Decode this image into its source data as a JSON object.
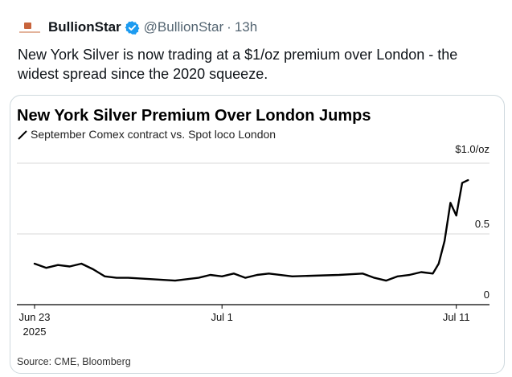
{
  "tweet": {
    "display_name": "BullionStar",
    "handle": "@BullionStar",
    "separator": "·",
    "timestamp": "13h",
    "text": "New York Silver is now trading at a $1/oz premium over London - the widest spread since the 2020 squeeze.",
    "verified_color": "#1d9bf0",
    "avatar_icon": "bullionstar-logo-icon"
  },
  "chart_data": {
    "type": "line",
    "title": "New York Silver Premium Over London Jumps",
    "legend": "September Comex contract vs. Spot loco London",
    "legend_placement": "top-left",
    "source": "Source: CME, Bloomberg",
    "y_unit_label": "$1.0/oz",
    "ylim": [
      0,
      1.0
    ],
    "yticks": [
      {
        "value": 0,
        "label": "0"
      },
      {
        "value": 0.5,
        "label": "0.5"
      },
      {
        "value": 1.0,
        "label": "$1.0/oz"
      }
    ],
    "xlim": [
      "2025-06-23",
      "2025-07-12"
    ],
    "xticks": [
      {
        "date": "2025-06-23",
        "label": "Jun 23",
        "sublabel": "2025"
      },
      {
        "date": "2025-07-01",
        "label": "Jul 1",
        "sublabel": ""
      },
      {
        "date": "2025-07-11",
        "label": "Jul 11",
        "sublabel": ""
      }
    ],
    "grid": "horizontal",
    "line_color": "#000000",
    "series": [
      {
        "name": "",
        "points": [
          {
            "x": "2025-06-23",
            "y": 0.29
          },
          {
            "x": "2025-06-23T12:00",
            "y": 0.26
          },
          {
            "x": "2025-06-24",
            "y": 0.28
          },
          {
            "x": "2025-06-24T12:00",
            "y": 0.27
          },
          {
            "x": "2025-06-25",
            "y": 0.29
          },
          {
            "x": "2025-06-25T12:00",
            "y": 0.25
          },
          {
            "x": "2025-06-26",
            "y": 0.2
          },
          {
            "x": "2025-06-26T12:00",
            "y": 0.19
          },
          {
            "x": "2025-06-27",
            "y": 0.19
          },
          {
            "x": "2025-06-29",
            "y": 0.17
          },
          {
            "x": "2025-06-30",
            "y": 0.19
          },
          {
            "x": "2025-06-30T12:00",
            "y": 0.21
          },
          {
            "x": "2025-07-01",
            "y": 0.2
          },
          {
            "x": "2025-07-01T12:00",
            "y": 0.22
          },
          {
            "x": "2025-07-02",
            "y": 0.19
          },
          {
            "x": "2025-07-02T12:00",
            "y": 0.21
          },
          {
            "x": "2025-07-03",
            "y": 0.22
          },
          {
            "x": "2025-07-04",
            "y": 0.2
          },
          {
            "x": "2025-07-06",
            "y": 0.21
          },
          {
            "x": "2025-07-07",
            "y": 0.22
          },
          {
            "x": "2025-07-07T12:00",
            "y": 0.19
          },
          {
            "x": "2025-07-08",
            "y": 0.17
          },
          {
            "x": "2025-07-08T12:00",
            "y": 0.2
          },
          {
            "x": "2025-07-09",
            "y": 0.21
          },
          {
            "x": "2025-07-09T12:00",
            "y": 0.23
          },
          {
            "x": "2025-07-10",
            "y": 0.22
          },
          {
            "x": "2025-07-10T06:00",
            "y": 0.29
          },
          {
            "x": "2025-07-10T12:00",
            "y": 0.45
          },
          {
            "x": "2025-07-10T18:00",
            "y": 0.72
          },
          {
            "x": "2025-07-11",
            "y": 0.63
          },
          {
            "x": "2025-07-11T06:00",
            "y": 0.86
          },
          {
            "x": "2025-07-11T12:00",
            "y": 0.88
          }
        ]
      }
    ]
  }
}
